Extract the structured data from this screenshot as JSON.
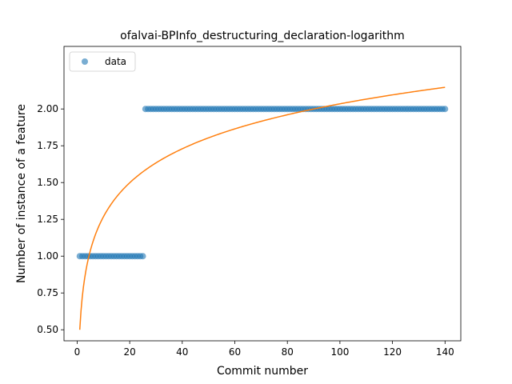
{
  "chart_data": {
    "type": "scatter",
    "title": "ofalvai-BPInfo_destructuring_declaration-logarithm",
    "xlabel": "Commit number",
    "ylabel": "Number of instance of a feature",
    "xlim": [
      -5,
      146
    ],
    "ylim": [
      0.425,
      2.425
    ],
    "xticks": [
      0,
      20,
      40,
      60,
      80,
      100,
      120,
      140
    ],
    "yticks": [
      0.5,
      0.75,
      1.0,
      1.25,
      1.5,
      1.75,
      2.0
    ],
    "xtick_labels": [
      "0",
      "20",
      "40",
      "60",
      "80",
      "100",
      "120",
      "140"
    ],
    "ytick_labels": [
      "0.50",
      "0.75",
      "1.00",
      "1.25",
      "1.50",
      "1.75",
      "2.00"
    ],
    "grid": false,
    "legend_position": "top-left",
    "series": [
      {
        "name": "data",
        "kind": "scatter",
        "color": "#1f77b4",
        "segments": [
          {
            "x_start": 1,
            "x_end": 25,
            "y": 1
          },
          {
            "x_start": 26,
            "x_end": 140,
            "y": 2
          }
        ]
      },
      {
        "kind": "line",
        "color": "#ff7f0e",
        "model": "logarithmic",
        "a": 0.5,
        "b": 0.3333,
        "x_range": [
          1,
          140
        ]
      }
    ]
  }
}
